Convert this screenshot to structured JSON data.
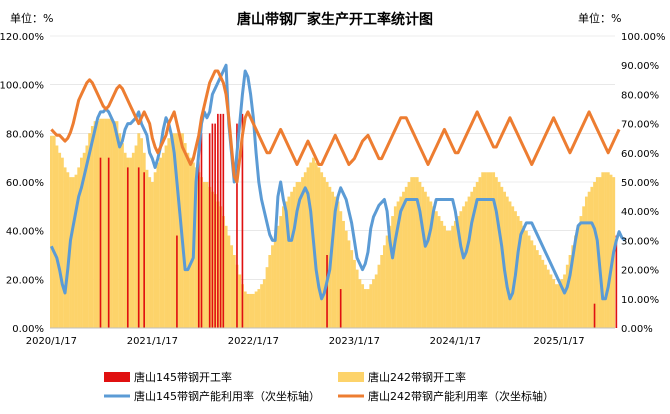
{
  "chart_data": {
    "type": "bar",
    "title": "唐山带钢厂家生产开工率统计图",
    "left_unit": "单位：%",
    "right_unit": "单位：%",
    "x_ticks": [
      "2020/1/17",
      "2021/1/17",
      "2022/1/17",
      "2023/1/17",
      "2024/1/17",
      "2025/1/17"
    ],
    "y_left": {
      "range": [
        0,
        120
      ],
      "ticks": [
        "0.00%",
        "20.00%",
        "40.00%",
        "60.00%",
        "80.00%",
        "100.00%",
        "120.00%"
      ]
    },
    "y_right": {
      "range": [
        0,
        100
      ],
      "ticks": [
        "0.00%",
        "10.00%",
        "20.00%",
        "30.00%",
        "40.00%",
        "50.00%",
        "60.00%",
        "70.00%",
        "80.00%",
        "90.00%",
        "100.00%"
      ]
    },
    "legend": [
      "唐山145带钢开工率",
      "唐山242带钢开工率",
      "唐山145带钢产能利用率（次坐标轴）",
      "唐山242带钢产能利用率（次坐标轴）"
    ],
    "colors": {
      "s145_bar": "#e01010",
      "s242_bar": "#fdd36a",
      "s145_line": "#5b9bd5",
      "s242_line": "#ed7d31"
    },
    "series": [
      {
        "name": "唐山242带钢开工率",
        "axis": "left",
        "kind": "bar",
        "values": [
          79,
          79,
          75,
          72,
          70,
          66,
          64,
          62,
          62,
          63,
          66,
          70,
          72,
          75,
          80,
          83,
          85,
          85,
          86,
          86,
          86,
          86,
          86,
          85,
          85,
          80,
          76,
          72,
          70,
          70,
          72,
          75,
          80,
          78,
          72,
          65,
          62,
          60,
          64,
          68,
          70,
          72,
          75,
          78,
          80,
          80,
          80,
          80,
          80,
          76,
          72,
          70,
          68,
          66,
          64,
          62,
          60,
          60,
          58,
          56,
          55,
          52,
          50,
          46,
          42,
          38,
          34,
          30,
          26,
          22,
          18,
          15,
          14,
          14,
          14,
          15,
          16,
          18,
          20,
          25,
          30,
          34,
          38,
          42,
          46,
          50,
          52,
          54,
          56,
          58,
          60,
          60,
          62,
          64,
          66,
          68,
          70,
          68,
          66,
          64,
          62,
          60,
          58,
          56,
          54,
          52,
          48,
          44,
          40,
          36,
          32,
          28,
          24,
          20,
          18,
          16,
          16,
          18,
          20,
          22,
          26,
          30,
          34,
          38,
          42,
          46,
          50,
          52,
          54,
          56,
          58,
          60,
          62,
          62,
          62,
          60,
          58,
          56,
          54,
          52,
          50,
          48,
          46,
          44,
          42,
          40,
          40,
          42,
          44,
          46,
          48,
          50,
          52,
          54,
          56,
          58,
          60,
          62,
          64,
          64,
          64,
          64,
          64,
          62,
          60,
          58,
          56,
          54,
          52,
          50,
          48,
          46,
          44,
          42,
          40,
          38,
          36,
          34,
          32,
          30,
          28,
          26,
          24,
          22,
          20,
          18,
          18,
          20,
          22,
          26,
          30,
          34,
          38,
          42,
          46,
          50,
          54,
          56,
          58,
          60,
          62,
          62,
          64,
          64,
          64,
          63,
          62
        ]
      },
      {
        "name": "唐山145带钢开工率",
        "axis": "left",
        "kind": "bar",
        "values": [
          0,
          0,
          0,
          0,
          0,
          0,
          0,
          0,
          0,
          0,
          0,
          0,
          0,
          0,
          0,
          0,
          0,
          0,
          70,
          0,
          0,
          70,
          0,
          0,
          0,
          0,
          0,
          0,
          66,
          0,
          0,
          0,
          66,
          0,
          64,
          0,
          0,
          0,
          0,
          0,
          0,
          0,
          0,
          0,
          0,
          0,
          38,
          0,
          0,
          0,
          0,
          0,
          0,
          0,
          80,
          80,
          0,
          0,
          80,
          84,
          84,
          88,
          88,
          88,
          0,
          0,
          0,
          0,
          84,
          0,
          88,
          0,
          0,
          0,
          0,
          0,
          0,
          0,
          0,
          0,
          0,
          0,
          0,
          0,
          0,
          0,
          0,
          0,
          0,
          0,
          0,
          0,
          0,
          0,
          0,
          0,
          0,
          0,
          0,
          0,
          0,
          30,
          0,
          0,
          0,
          0,
          16,
          0,
          0,
          0,
          0,
          0,
          0,
          0,
          0,
          0,
          0,
          0,
          0,
          0,
          0,
          0,
          0,
          0,
          0,
          0,
          0,
          0,
          0,
          0,
          0,
          0,
          0,
          0,
          0,
          0,
          0,
          0,
          0,
          0,
          0,
          0,
          0,
          0,
          0,
          0,
          0,
          0,
          0,
          0,
          0,
          0,
          0,
          0,
          0,
          0,
          0,
          0,
          0,
          0,
          0,
          0,
          0,
          0,
          0,
          0,
          0,
          0,
          0,
          0,
          0,
          0,
          0,
          0,
          0,
          0,
          0,
          0,
          0,
          0,
          0,
          0,
          0,
          0,
          0,
          0,
          0,
          0,
          0,
          0,
          0,
          0,
          0,
          0,
          0,
          0,
          0,
          0,
          0,
          10,
          0,
          0,
          0,
          0,
          0,
          0,
          0,
          38,
          0,
          0,
          0,
          0,
          0
        ]
      },
      {
        "name": "唐山145带钢产能利用率（次坐标轴）",
        "axis": "right",
        "kind": "line",
        "values": [
          28,
          26,
          24,
          20,
          15,
          12,
          20,
          30,
          35,
          40,
          45,
          48,
          52,
          56,
          60,
          64,
          68,
          72,
          74,
          74,
          75,
          74,
          72,
          70,
          66,
          62,
          64,
          68,
          70,
          70,
          71,
          72,
          74,
          70,
          68,
          66,
          60,
          58,
          55,
          58,
          62,
          68,
          72,
          70,
          66,
          60,
          50,
          40,
          30,
          20,
          20,
          22,
          24,
          50,
          60,
          70,
          74,
          72,
          74,
          80,
          82,
          84,
          86,
          88,
          90,
          70,
          60,
          50,
          60,
          70,
          80,
          88,
          86,
          80,
          72,
          60,
          50,
          44,
          40,
          36,
          32,
          30,
          30,
          45,
          50,
          44,
          40,
          30,
          30,
          34,
          40,
          44,
          46,
          48,
          46,
          40,
          30,
          20,
          14,
          10,
          12,
          16,
          20,
          30,
          40,
          45,
          48,
          46,
          44,
          40,
          36,
          30,
          24,
          22,
          20,
          22,
          26,
          34,
          38,
          40,
          42,
          43,
          44,
          40,
          30,
          24,
          30,
          35,
          40,
          42,
          44,
          44,
          44,
          44,
          44,
          40,
          34,
          28,
          30,
          34,
          40,
          44,
          44,
          44,
          44,
          44,
          44,
          44,
          40,
          34,
          28,
          24,
          26,
          30,
          36,
          40,
          44,
          44,
          44,
          44,
          44,
          44,
          44,
          40,
          34,
          28,
          20,
          14,
          10,
          12,
          18,
          26,
          32,
          34,
          36,
          36,
          36,
          34,
          32,
          30,
          28,
          26,
          24,
          22,
          20,
          18,
          16,
          14,
          12,
          14,
          18,
          24,
          30,
          35,
          36,
          36,
          36,
          36,
          36,
          34,
          30,
          20,
          10,
          10,
          14,
          20,
          26,
          30,
          33,
          31,
          30
        ]
      },
      {
        "name": "唐山242带钢产能利用率（次坐标轴）",
        "axis": "right",
        "kind": "line",
        "values": [
          68,
          67,
          66,
          66,
          65,
          64,
          65,
          67,
          70,
          74,
          78,
          80,
          82,
          84,
          85,
          84,
          82,
          80,
          78,
          76,
          75,
          76,
          78,
          80,
          82,
          83,
          82,
          80,
          78,
          76,
          74,
          72,
          70,
          72,
          74,
          72,
          70,
          65,
          62,
          60,
          62,
          64,
          66,
          70,
          72,
          74,
          70,
          66,
          62,
          60,
          58,
          56,
          58,
          62,
          66,
          72,
          76,
          80,
          84,
          86,
          88,
          88,
          86,
          84,
          80,
          72,
          62,
          52,
          50,
          58,
          66,
          72,
          74,
          72,
          70,
          68,
          66,
          64,
          62,
          60,
          60,
          62,
          64,
          66,
          68,
          66,
          64,
          62,
          60,
          58,
          56,
          58,
          60,
          62,
          64,
          62,
          60,
          58,
          56,
          56,
          58,
          60,
          62,
          64,
          66,
          64,
          62,
          60,
          58,
          56,
          57,
          58,
          60,
          62,
          64,
          65,
          66,
          64,
          62,
          60,
          58,
          58,
          60,
          62,
          64,
          66,
          68,
          70,
          72,
          72,
          72,
          70,
          68,
          66,
          64,
          62,
          60,
          58,
          56,
          58,
          60,
          62,
          64,
          66,
          68,
          66,
          64,
          62,
          60,
          60,
          62,
          64,
          66,
          68,
          70,
          72,
          74,
          72,
          70,
          68,
          66,
          64,
          62,
          62,
          64,
          66,
          68,
          70,
          72,
          70,
          68,
          66,
          64,
          62,
          60,
          58,
          56,
          58,
          60,
          62,
          64,
          66,
          68,
          70,
          72,
          70,
          68,
          66,
          64,
          62,
          60,
          62,
          64,
          66,
          68,
          70,
          72,
          74,
          72,
          70,
          68,
          66,
          64,
          62,
          60,
          62,
          64,
          66,
          68
        ]
      }
    ]
  }
}
